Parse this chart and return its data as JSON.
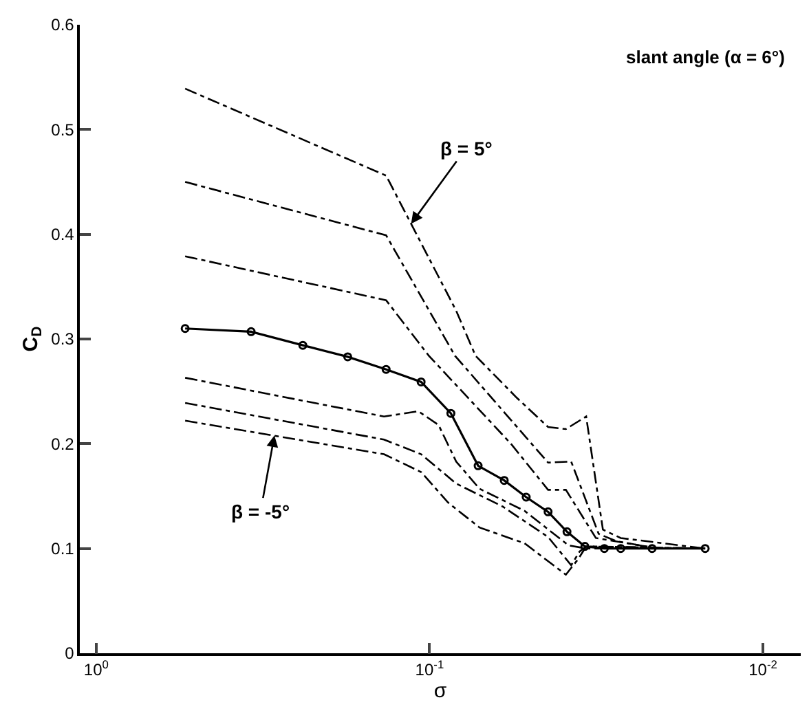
{
  "chart_data": {
    "type": "line",
    "xlabel": "σ",
    "ylabel": "C$_{D}$",
    "log": "x",
    "xlim": [
      1.12,
      0.0077
    ],
    "xticks": [
      {
        "value": 1,
        "label": "10$^{0}$"
      },
      {
        "value": 0.1,
        "label": "10$^{-1}$"
      },
      {
        "value": 0.01,
        "label": "10$^{-2}$"
      }
    ],
    "ylim": [
      0,
      0.6
    ],
    "yticks": [
      0,
      0.1,
      0.2,
      0.3,
      0.4,
      0.5,
      0.6
    ],
    "series": [
      {
        "color": "#000000",
        "line_style": "dashed",
        "marker": "none",
        "x": [
          0.541,
          0.135,
          0.1136,
          0.0832,
          0.0728,
          0.0548,
          0.0441,
          0.039,
          0.0339,
          0.0302,
          0.0267,
          0.0149
        ],
        "values": [
          0.539,
          0.456,
          0.41,
          0.327,
          0.284,
          0.244,
          0.216,
          0.214,
          0.226,
          0.118,
          0.11,
          0.1
        ]
      },
      {
        "color": "#000000",
        "line_style": "dashed",
        "marker": "none",
        "x": [
          0.541,
          0.135,
          0.0839,
          0.0441,
          0.0376,
          0.0311,
          0.0275,
          0.0207,
          0.0149
        ],
        "values": [
          0.45,
          0.399,
          0.284,
          0.182,
          0.183,
          0.114,
          0.107,
          0.1,
          0.1
        ]
      },
      {
        "color": "#000000",
        "line_style": "dashed",
        "marker": "none",
        "x": [
          0.541,
          0.135,
          0.1005,
          0.057,
          0.0441,
          0.039,
          0.0317,
          0.0207,
          0.0149
        ],
        "values": [
          0.379,
          0.337,
          0.284,
          0.2,
          0.156,
          0.156,
          0.11,
          0.1,
          0.1
        ]
      },
      {
        "color": "#000000",
        "line_style": "solid",
        "marker": "circle",
        "x": [
          0.541,
          0.343,
          0.24,
          0.176,
          0.135,
          0.106,
          0.0863,
          0.0715,
          0.0597,
          0.0513,
          0.0441,
          0.0387,
          0.0342,
          0.0299,
          0.0267,
          0.0215,
          0.0149
        ],
        "values": [
          0.31,
          0.307,
          0.294,
          0.283,
          0.271,
          0.259,
          0.229,
          0.179,
          0.165,
          0.149,
          0.135,
          0.116,
          0.102,
          0.1,
          0.1,
          0.1,
          0.1
        ]
      },
      {
        "color": "#000000",
        "line_style": "dashed",
        "marker": "none",
        "x": [
          0.541,
          0.137,
          0.108,
          0.094,
          0.0832,
          0.0708,
          0.0519,
          0.0383,
          0.0339,
          0.0149
        ],
        "values": [
          0.263,
          0.226,
          0.231,
          0.218,
          0.183,
          0.157,
          0.136,
          0.103,
          0.1,
          0.1
        ]
      },
      {
        "color": "#000000",
        "line_style": "dashed",
        "marker": "none",
        "x": [
          0.541,
          0.137,
          0.106,
          0.0832,
          0.0603,
          0.0441,
          0.0376,
          0.0355,
          0.0339,
          0.0149
        ],
        "values": [
          0.239,
          0.204,
          0.19,
          0.162,
          0.14,
          0.111,
          0.084,
          0.097,
          0.102,
          0.1
        ]
      },
      {
        "color": "#000000",
        "line_style": "dashed",
        "marker": "none",
        "x": [
          0.541,
          0.137,
          0.106,
          0.0881,
          0.0708,
          0.0519,
          0.039,
          0.0358,
          0.0339,
          0.0149
        ],
        "values": [
          0.222,
          0.19,
          0.173,
          0.144,
          0.12,
          0.105,
          0.075,
          0.09,
          0.102,
          0.1
        ]
      }
    ],
    "annotations": [
      "slant angle (α = 6°)",
      {
        "text": "β = 5°",
        "x": 0.1136,
        "y": 0.41
      },
      {
        "text": "β = -5°",
        "x": 0.292,
        "y": 0.208
      }
    ]
  }
}
